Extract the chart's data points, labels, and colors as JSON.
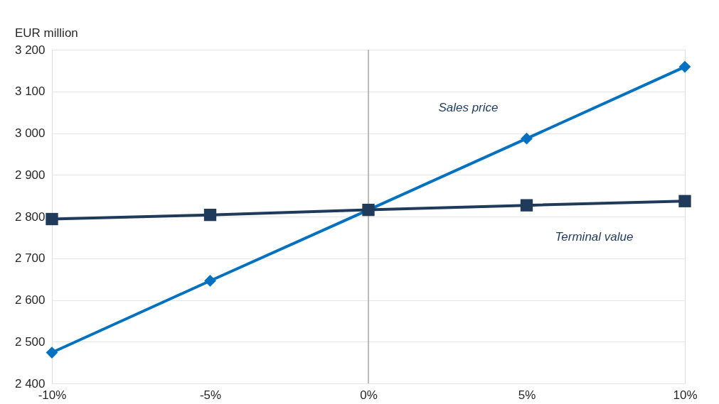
{
  "chart_data": {
    "type": "line",
    "ylabel": "EUR million",
    "x": [
      -10,
      -5,
      0,
      5,
      10
    ],
    "series": [
      {
        "name": "Sales price",
        "color": "#0070c0",
        "marker": "diamond",
        "values": [
          2474,
          2646,
          2816,
          2987,
          3159
        ]
      },
      {
        "name": "Terminal value",
        "color": "#1f3a5a",
        "marker": "square",
        "values": [
          2794,
          2804,
          2816,
          2827,
          2837
        ]
      }
    ],
    "xlim": [
      -10,
      10
    ],
    "xticks": [
      {
        "value": -10,
        "label": "-10%"
      },
      {
        "value": -5,
        "label": "-5%"
      },
      {
        "value": 0,
        "label": "0%"
      },
      {
        "value": 5,
        "label": "5%"
      },
      {
        "value": 10,
        "label": "10%"
      }
    ],
    "ylim": [
      2400,
      3200
    ],
    "yticks": [
      {
        "value": 2400,
        "label": "2 400"
      },
      {
        "value": 2500,
        "label": "2 500"
      },
      {
        "value": 2600,
        "label": "2 600"
      },
      {
        "value": 2700,
        "label": "2 700"
      },
      {
        "value": 2800,
        "label": "2 800"
      },
      {
        "value": 2900,
        "label": "2 900"
      },
      {
        "value": 3000,
        "label": "3 000"
      },
      {
        "value": 3100,
        "label": "3 100"
      },
      {
        "value": 3200,
        "label": "3 200"
      }
    ],
    "ref_lines": [
      {
        "axis": "x",
        "value": 0,
        "color": "#a6a6a6"
      }
    ],
    "grid": "y",
    "line_style": "solid"
  }
}
